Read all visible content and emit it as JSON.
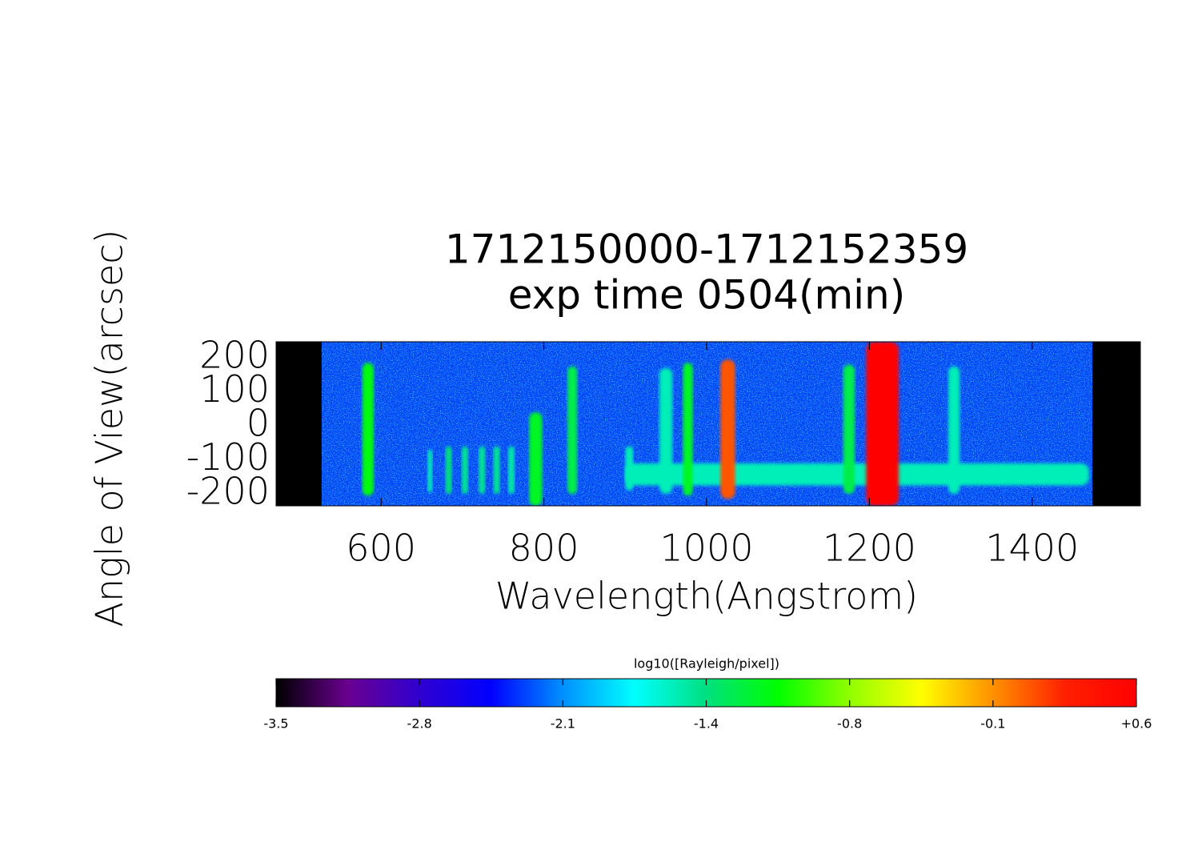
{
  "chart_data": {
    "type": "spectral-image",
    "title": [
      "1712150000-1712152359",
      "exp time 0504(min)"
    ],
    "xlabel": "Wavelength(Angstrom)",
    "ylabel": "Angle of View(arcsec)",
    "xlim": [
      471,
      1533
    ],
    "ylim": [
      -235,
      247
    ],
    "xticks": [
      600,
      800,
      1000,
      1200,
      1400
    ],
    "yticks": [
      200,
      100,
      0,
      -100,
      -200
    ],
    "image_xlim": [
      527,
      1474
    ],
    "background": -2.3,
    "lines": [
      {
        "x": 1185,
        "width": 570,
        "ylim": [
          -175,
          -110
        ],
        "value": -1.6
      },
      {
        "x": 584,
        "width": 14,
        "ylim": [
          -205,
          185
        ],
        "value": -1.15
      },
      {
        "x": 660,
        "width": 6,
        "ylim": [
          -195,
          -70
        ],
        "value": -1.6
      },
      {
        "x": 683,
        "width": 8,
        "ylim": [
          -200,
          -60
        ],
        "value": -1.45
      },
      {
        "x": 703,
        "width": 8,
        "ylim": [
          -200,
          -60
        ],
        "value": -1.5
      },
      {
        "x": 724,
        "width": 8,
        "ylim": [
          -200,
          -60
        ],
        "value": -1.5
      },
      {
        "x": 742,
        "width": 8,
        "ylim": [
          -200,
          -60
        ],
        "value": -1.5
      },
      {
        "x": 760,
        "width": 8,
        "ylim": [
          -200,
          -60
        ],
        "value": -1.55
      },
      {
        "x": 790,
        "width": 16,
        "ylim": [
          -235,
          40
        ],
        "value": -1.2
      },
      {
        "x": 835,
        "width": 12,
        "ylim": [
          -200,
          175
        ],
        "value": -1.3
      },
      {
        "x": 905,
        "width": 10,
        "ylim": [
          -190,
          -60
        ],
        "value": -1.6
      },
      {
        "x": 950,
        "width": 16,
        "ylim": [
          -200,
          170
        ],
        "value": -1.6
      },
      {
        "x": 977,
        "width": 12,
        "ylim": [
          -205,
          185
        ],
        "value": -1.2
      },
      {
        "x": 1026,
        "width": 18,
        "ylim": [
          -215,
          195
        ],
        "value": 0.1
      },
      {
        "x": 1175,
        "width": 14,
        "ylim": [
          -200,
          180
        ],
        "value": -1.3
      },
      {
        "x": 1216,
        "width": 40,
        "ylim": [
          -235,
          247
        ],
        "value": 0.6
      },
      {
        "x": 1304,
        "width": 14,
        "ylim": [
          -200,
          175
        ],
        "value": -1.6
      }
    ],
    "colorbar": {
      "label": "log10([Rayleigh/pixel])",
      "lim": [
        -3.5,
        0.6
      ],
      "ticks": [
        {
          "value": -3.5,
          "label": "-3.5"
        },
        {
          "value": -2.8167,
          "label": "-2.8"
        },
        {
          "value": -2.1333,
          "label": "-2.1"
        },
        {
          "value": -1.45,
          "label": "-1.4"
        },
        {
          "value": -0.7667,
          "label": "-0.8"
        },
        {
          "value": -0.0833,
          "label": "-0.1"
        },
        {
          "value": 0.6,
          "label": "+0.6"
        }
      ],
      "colormap": [
        "#000000",
        "#6a0090",
        "#3000d0",
        "#0000ff",
        "#0090ff",
        "#00ffff",
        "#00e080",
        "#00ff00",
        "#90ff00",
        "#ffff00",
        "#ff9000",
        "#ff2000",
        "#ff0000"
      ]
    }
  }
}
